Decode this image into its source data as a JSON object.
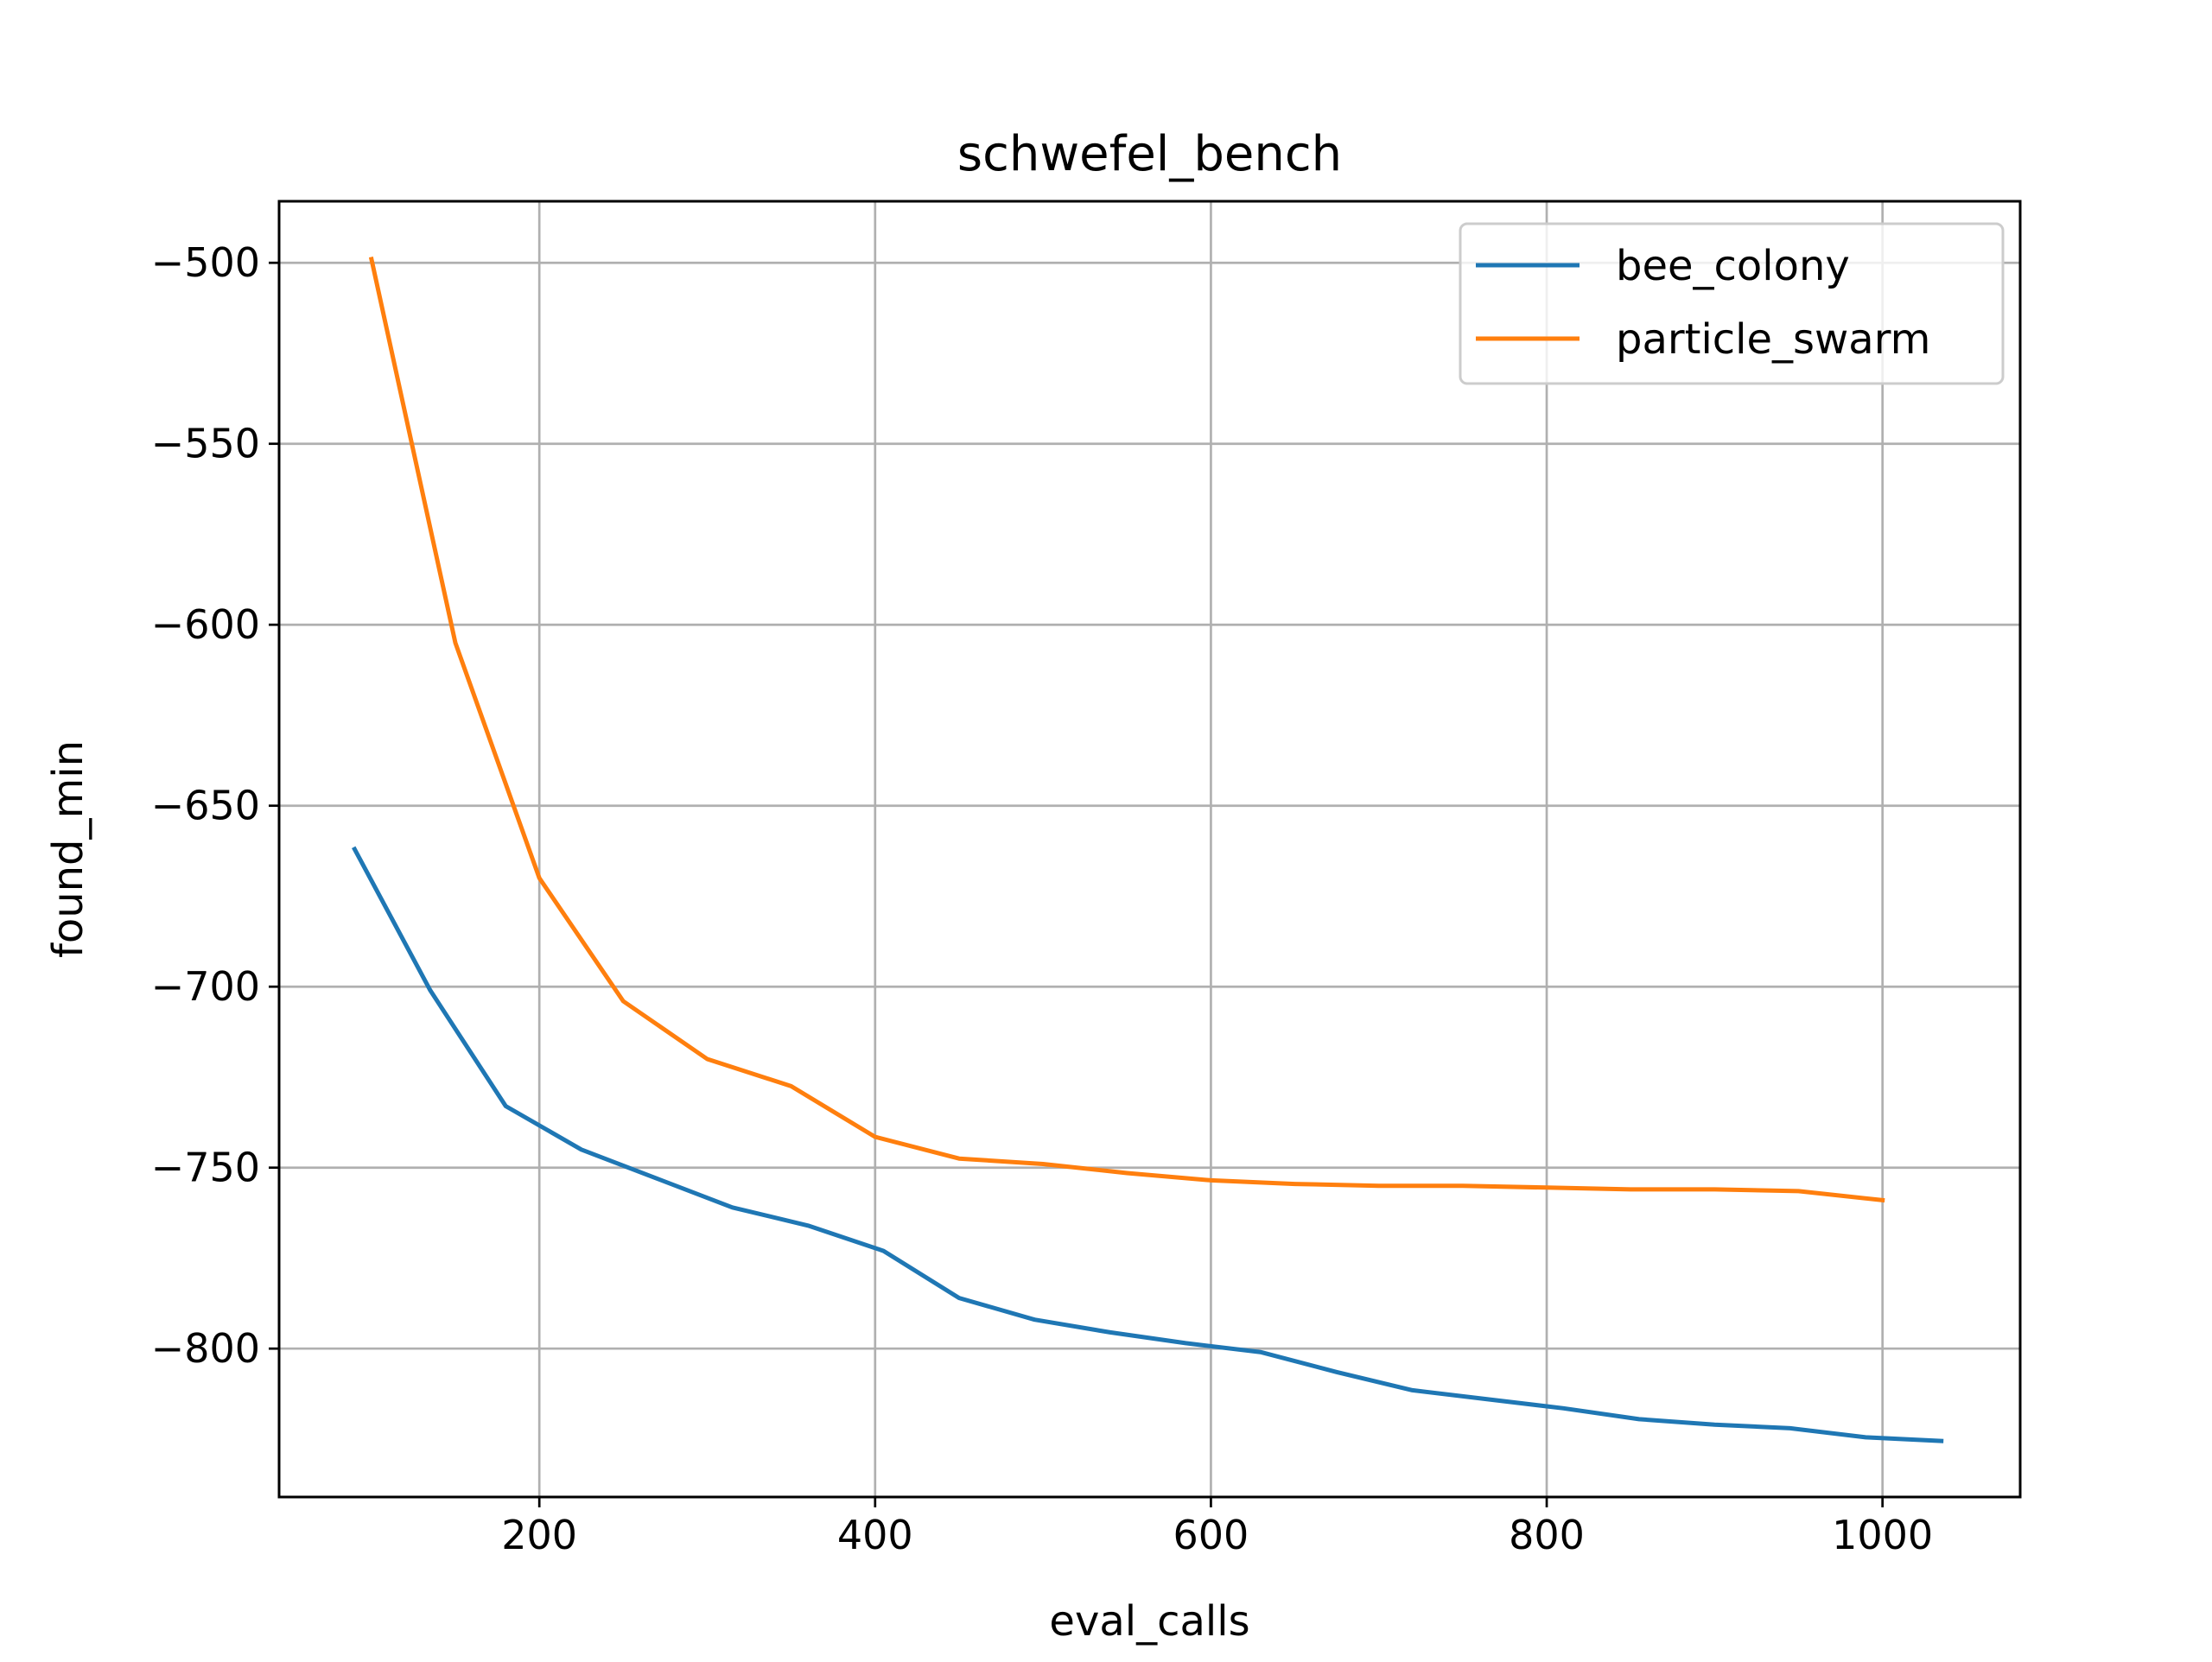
{
  "chart_data": {
    "type": "line",
    "title": "schwefel_bench",
    "xlabel": "eval_calls",
    "ylabel": "found_min",
    "xlim": [
      45,
      1082
    ],
    "ylim": [
      -841,
      -483
    ],
    "xticks": [
      200,
      400,
      600,
      800,
      1000
    ],
    "yticks": [
      -500,
      -550,
      -600,
      -650,
      -700,
      -750,
      -800
    ],
    "xtick_labels": [
      "200",
      "400",
      "600",
      "800",
      "1000"
    ],
    "ytick_labels": [
      "−500",
      "−550",
      "−600",
      "−650",
      "−700",
      "−750",
      "−800"
    ],
    "grid": true,
    "legend_position": "upper right",
    "series": [
      {
        "name": "bee_colony",
        "color": "#1f77b4",
        "x": [
          90,
          135,
          180,
          225,
          270,
          315,
          360,
          405,
          450,
          495,
          540,
          585,
          630,
          675,
          720,
          765,
          810,
          855,
          900,
          945,
          990,
          1035
        ],
        "y": [
          -662,
          -701,
          -733,
          -745,
          -753,
          -761,
          -766,
          -773,
          -786,
          -792,
          -795.5,
          -798.5,
          -801,
          -806.5,
          -811.5,
          -814,
          -816.5,
          -819.5,
          -821,
          -822,
          -824.5,
          -825.5
        ]
      },
      {
        "name": "particle_swarm",
        "color": "#ff7f0e",
        "x": [
          100,
          150,
          200,
          250,
          300,
          350,
          400,
          450,
          500,
          550,
          600,
          650,
          700,
          750,
          800,
          850,
          900,
          950,
          1000
        ],
        "y": [
          -499,
          -605,
          -670,
          -704,
          -720,
          -727.5,
          -741.5,
          -747.5,
          -749,
          -751.5,
          -753.5,
          -754.5,
          -755,
          -755,
          -755.5,
          -756,
          -756,
          -756.5,
          -759
        ]
      }
    ]
  }
}
